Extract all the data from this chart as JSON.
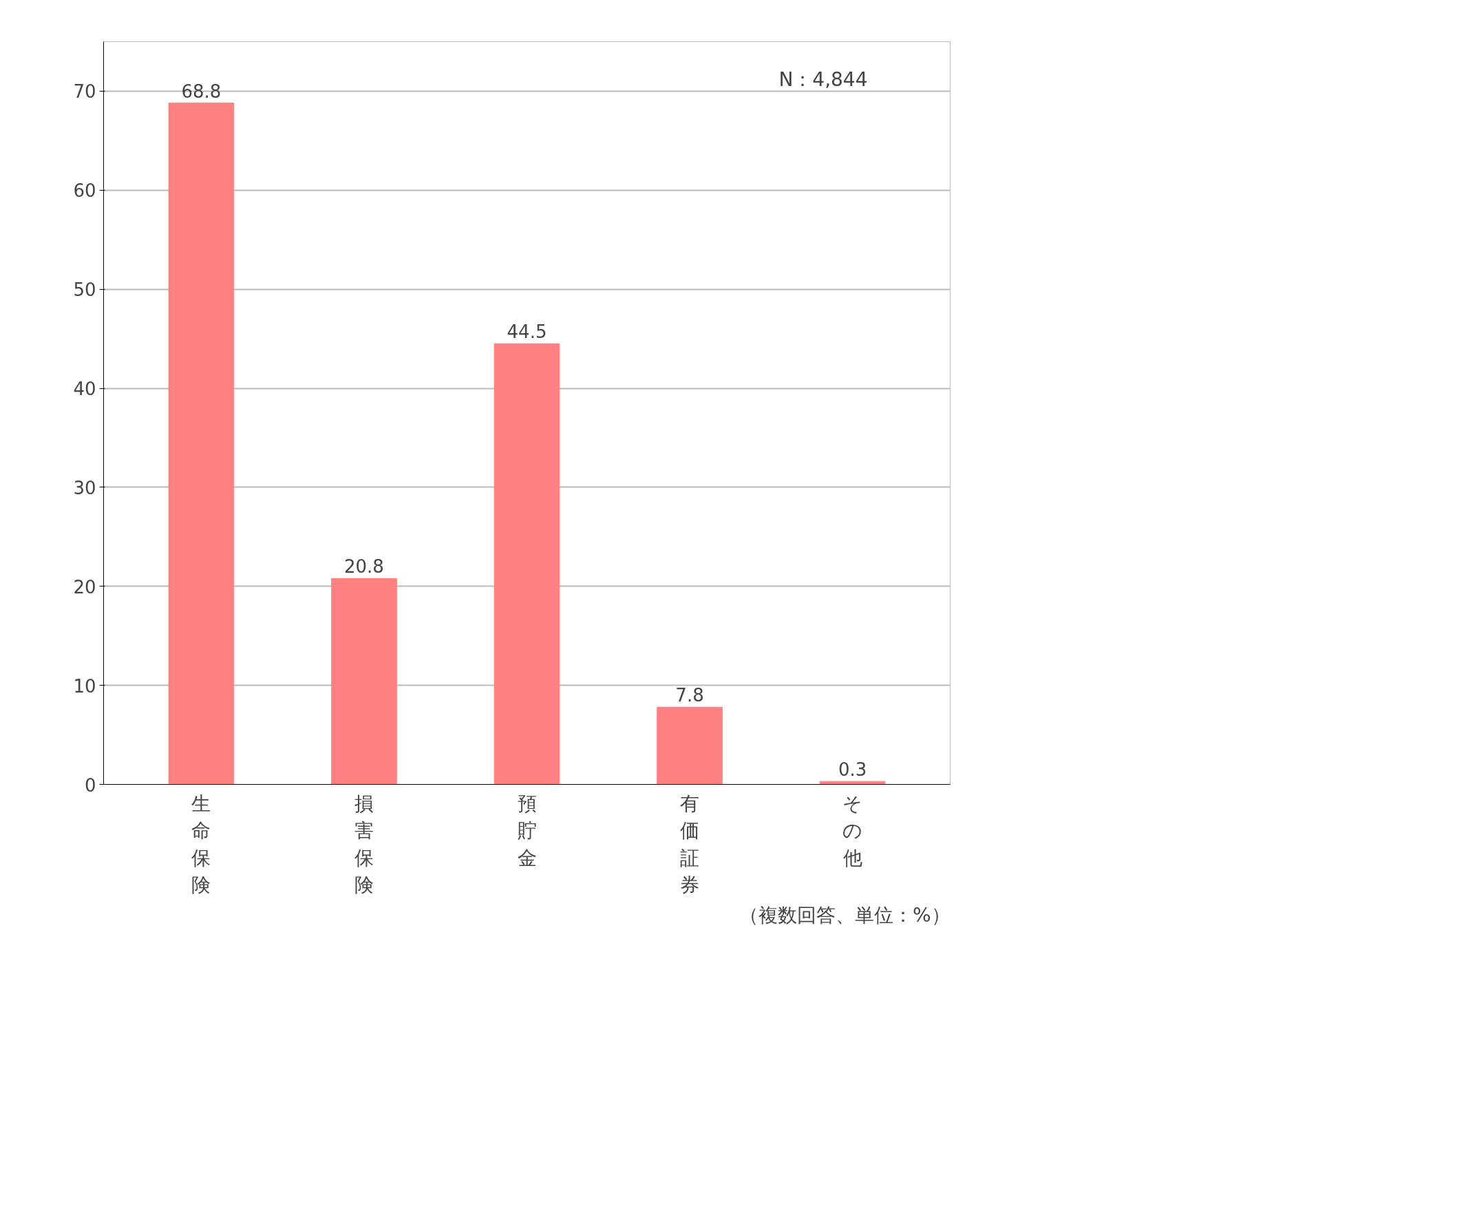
{
  "chart_data": {
    "type": "bar",
    "categories": [
      "生命保険",
      "損害保険",
      "預貯金",
      "有価証券",
      "その他"
    ],
    "values": [
      68.8,
      20.8,
      44.5,
      7.8,
      0.3
    ],
    "color": "#ff8080",
    "ylim": [
      0,
      75
    ],
    "yticks": [
      0,
      10,
      20,
      30,
      40,
      50,
      60,
      70
    ],
    "grid": "y",
    "data_labels": true,
    "annotations": [
      "N：4,844",
      "（複数回答、単位：%）"
    ]
  }
}
